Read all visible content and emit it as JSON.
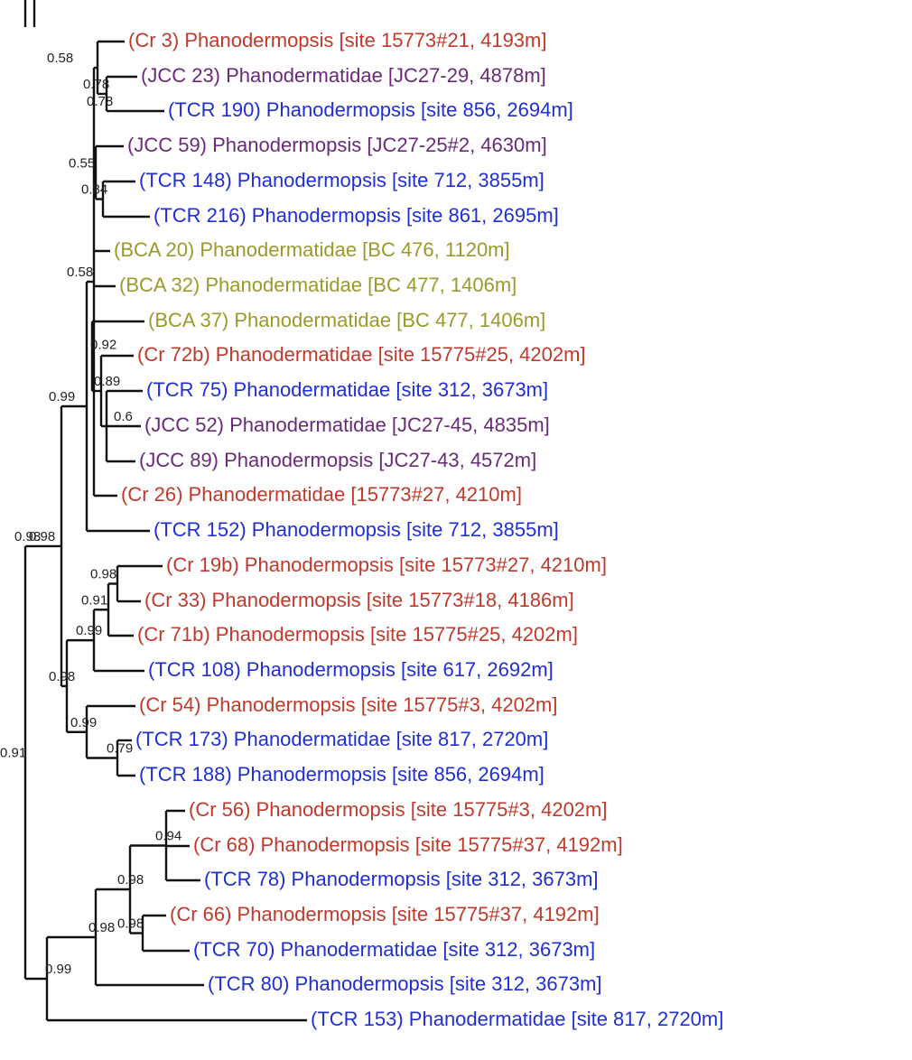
{
  "colors": {
    "Cr": "#c0392b",
    "JCC": "#6a2a7a",
    "TCR": "#1f2fd6",
    "BCA": "#9a9a2a",
    "branch": "#111111"
  },
  "taxa": [
    {
      "label": "(Cr 3) Phanodermopsis [site 15773#21, 4193m]",
      "group": "Cr"
    },
    {
      "label": "(JCC 23) Phanodermatidae [JC27-29, 4878m]",
      "group": "JCC"
    },
    {
      "label": "(TCR 190) Phanodermopsis [site 856, 2694m]",
      "group": "TCR"
    },
    {
      "label": "(JCC 59) Phanodermopsis [JC27-25#2, 4630m]",
      "group": "JCC"
    },
    {
      "label": "(TCR 148) Phanodermopsis [site 712, 3855m]",
      "group": "TCR"
    },
    {
      "label": "(TCR 216) Phanodermopsis [site 861, 2695m]",
      "group": "TCR"
    },
    {
      "label": "(BCA 20) Phanodermatidae [BC 476, 1120m]",
      "group": "BCA"
    },
    {
      "label": "(BCA 32) Phanodermatidae [BC 477, 1406m]",
      "group": "BCA"
    },
    {
      "label": "(BCA 37) Phanodermatidae [BC 477, 1406m]",
      "group": "BCA"
    },
    {
      "label": "(Cr 72b) Phanodermatidae [site 15775#25, 4202m]",
      "group": "Cr"
    },
    {
      "label": "(TCR 75) Phanodermatidae [site 312, 3673m]",
      "group": "TCR"
    },
    {
      "label": "(JCC 52) Phanodermatidae [JC27-45, 4835m]",
      "group": "JCC"
    },
    {
      "label": "(JCC 89) Phanodermopsis [JC27-43, 4572m]",
      "group": "JCC"
    },
    {
      "label": "(Cr 26) Phanodermatidae [15773#27, 4210m]",
      "group": "Cr"
    },
    {
      "label": "(TCR 152) Phanodermopsis [site 712, 3855m]",
      "group": "TCR"
    },
    {
      "label": "(Cr 19b) Phanodermopsis [site 15773#27, 4210m]",
      "group": "Cr"
    },
    {
      "label": "(Cr 33) Phanodermopsis [site 15773#18, 4186m]",
      "group": "Cr"
    },
    {
      "label": "(Cr 71b) Phanodermopsis [site 15775#25, 4202m]",
      "group": "Cr"
    },
    {
      "label": "(TCR 108) Phanodermopsis [site 617, 2692m]",
      "group": "TCR"
    },
    {
      "label": "(Cr 54) Phanodermopsis [site 15775#3, 4202m]",
      "group": "Cr"
    },
    {
      "label": "(TCR 173) Phanodermatidae [site 817, 2720m]",
      "group": "TCR"
    },
    {
      "label": "(TCR 188) Phanodermopsis [site 856, 2694m]",
      "group": "TCR"
    },
    {
      "label": "(Cr 56) Phanodermopsis [site 15775#3, 4202m]",
      "group": "Cr"
    },
    {
      "label": "(Cr 68) Phanodermopsis [site 15775#37, 4192m]",
      "group": "Cr"
    },
    {
      "label": "(TCR 78) Phanodermopsis [site 312, 3673m]",
      "group": "TCR"
    },
    {
      "label": "(Cr 66) Phanodermopsis [site 15775#37, 4192m]",
      "group": "Cr"
    },
    {
      "label": "(TCR 70) Phanodermatidae [site 312, 3673m]",
      "group": "TCR"
    },
    {
      "label": "(TCR 80) Phanodermopsis [site 312, 3673m]",
      "group": "TCR"
    },
    {
      "label": "(TCR 153)  Phanodermatidae [site 817, 2720m]",
      "group": "TCR"
    }
  ],
  "support_values": [
    "0.58",
    "0.78",
    "0.78",
    "0.55",
    "0.84",
    "0.58",
    "0.92",
    "0.89",
    "0.6",
    "0.99",
    "0.91",
    "0.98",
    "0.98",
    "0.91",
    "0.99",
    "0.98",
    "0.99",
    "0.79",
    "0.98",
    "0.98",
    "0.94",
    "0.98",
    "0.99",
    "0.98"
  ]
}
